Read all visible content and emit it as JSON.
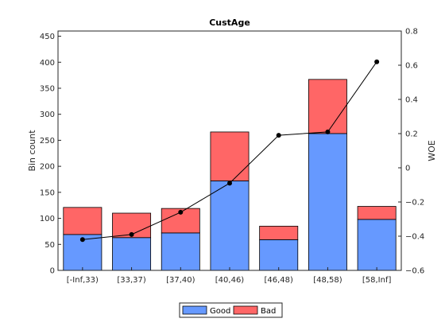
{
  "chart_data": {
    "type": "bar",
    "stacked": true,
    "title": "CustAge",
    "ylabel": "Bin count",
    "y2label": "WOE",
    "categories": [
      "[-Inf,33)",
      "[33,37)",
      "[37,40)",
      "[40,46)",
      "[46,48)",
      "[48,58)",
      "[58,Inf]"
    ],
    "series": [
      {
        "name": "Good",
        "color": "#6699ff",
        "values": [
          69,
          63,
          72,
          172,
          59,
          263,
          98
        ]
      },
      {
        "name": "Bad",
        "color": "#ff6666",
        "values": [
          52,
          47,
          47,
          94,
          26,
          104,
          25
        ]
      }
    ],
    "line": {
      "name": "WOE",
      "axis": "right",
      "color": "#000000",
      "values": [
        -0.42,
        -0.39,
        -0.26,
        -0.09,
        0.19,
        0.21,
        0.62
      ]
    },
    "ylim": [
      0,
      460
    ],
    "yticks": [
      0,
      50,
      100,
      150,
      200,
      250,
      300,
      350,
      400,
      450
    ],
    "y2lim": [
      -0.6,
      0.8
    ],
    "y2ticks": [
      -0.6,
      -0.4,
      -0.2,
      0,
      0.2,
      0.4,
      0.6,
      0.8
    ],
    "y2ticklabels": [
      "−0.6",
      "−0.4",
      "−0.2",
      "0",
      "0.2",
      "0.4",
      "0.6",
      "0.8"
    ],
    "grid": false,
    "legend": {
      "position": "bottom",
      "entries": [
        "Good",
        "Bad"
      ]
    }
  }
}
